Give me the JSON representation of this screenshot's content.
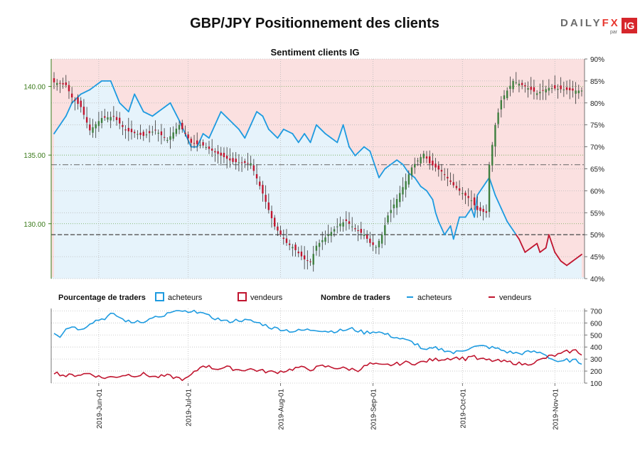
{
  "title": "GBP/JPY Positionnement des clients",
  "logo": {
    "brand_left": "DAILY",
    "brand_right": "FX",
    "by": "par",
    "badge": "IG"
  },
  "chart_data": [
    {
      "type": "candlestick+line",
      "title": "Sentiment clients IG",
      "price_axis": {
        "ticks": [
          "130.00",
          "135.00",
          "140.00"
        ],
        "range": [
          126.0,
          142.0
        ],
        "side": "left"
      },
      "percent_axis": {
        "ticks": [
          "40%",
          "45%",
          "50%",
          "55%",
          "60%",
          "65%",
          "70%",
          "75%",
          "80%",
          "85%",
          "90%"
        ],
        "range": [
          40,
          90
        ],
        "side": "right"
      },
      "reference_lines": {
        "price_dashdot": 134.3,
        "percent_dashed": 50
      },
      "grid": true,
      "price_close_knots": [
        [
          0,
          140.3
        ],
        [
          4,
          140.1
        ],
        [
          6,
          139.2
        ],
        [
          9,
          138.5
        ],
        [
          12,
          136.8
        ],
        [
          16,
          137.7
        ],
        [
          20,
          137.8
        ],
        [
          24,
          136.8
        ],
        [
          30,
          136.4
        ],
        [
          34,
          136.8
        ],
        [
          38,
          136.1
        ],
        [
          42,
          137.2
        ],
        [
          46,
          135.9
        ],
        [
          50,
          135.7
        ],
        [
          54,
          135.2
        ],
        [
          60,
          134.5
        ],
        [
          66,
          134.4
        ],
        [
          70,
          132.2
        ],
        [
          74,
          129.8
        ],
        [
          78,
          128.6
        ],
        [
          80,
          128.3
        ],
        [
          84,
          127.4
        ],
        [
          86,
          127.2
        ],
        [
          88,
          128.4
        ],
        [
          92,
          129.2
        ],
        [
          96,
          130.0
        ],
        [
          98,
          130.2
        ],
        [
          101,
          129.6
        ],
        [
          104,
          129.2
        ],
        [
          106,
          128.6
        ],
        [
          108,
          128.3
        ],
        [
          110,
          129.2
        ],
        [
          112,
          130.6
        ],
        [
          115,
          131.8
        ],
        [
          118,
          133.1
        ],
        [
          120,
          134.1
        ],
        [
          124,
          135.1
        ],
        [
          126,
          134.4
        ],
        [
          130,
          133.8
        ],
        [
          134,
          132.8
        ],
        [
          136,
          132.4
        ],
        [
          140,
          131.7
        ],
        [
          142,
          131.0
        ],
        [
          145,
          130.8
        ],
        [
          146,
          134.3
        ],
        [
          148,
          137.2
        ],
        [
          150,
          139.0
        ],
        [
          154,
          140.4
        ],
        [
          158,
          140.0
        ],
        [
          162,
          139.5
        ],
        [
          166,
          139.9
        ],
        [
          170,
          139.8
        ],
        [
          174,
          139.7
        ]
      ],
      "sentiment_long_pct_knots": [
        [
          0,
          73
        ],
        [
          4,
          77
        ],
        [
          6,
          80
        ],
        [
          9,
          82
        ],
        [
          12,
          83
        ],
        [
          16,
          85
        ],
        [
          19,
          85
        ],
        [
          22,
          80
        ],
        [
          25,
          78
        ],
        [
          27,
          82
        ],
        [
          30,
          78
        ],
        [
          33,
          77
        ],
        [
          37,
          79
        ],
        [
          39,
          80
        ],
        [
          42,
          76
        ],
        [
          44,
          73
        ],
        [
          46,
          70
        ],
        [
          48,
          70
        ],
        [
          50,
          73
        ],
        [
          52,
          72
        ],
        [
          54,
          75
        ],
        [
          56,
          78
        ],
        [
          59,
          76
        ],
        [
          62,
          74
        ],
        [
          64,
          72
        ],
        [
          66,
          75
        ],
        [
          68,
          78
        ],
        [
          70,
          77
        ],
        [
          72,
          74
        ],
        [
          75,
          72
        ],
        [
          77,
          74
        ],
        [
          80,
          73
        ],
        [
          82,
          71
        ],
        [
          84,
          73
        ],
        [
          86,
          71
        ],
        [
          88,
          75
        ],
        [
          91,
          73
        ],
        [
          93,
          72
        ],
        [
          95,
          71
        ],
        [
          97,
          75
        ],
        [
          99,
          70
        ],
        [
          101,
          68
        ],
        [
          104,
          70
        ],
        [
          106,
          69
        ],
        [
          107,
          67
        ],
        [
          109,
          63
        ],
        [
          111,
          65
        ],
        [
          113,
          66
        ],
        [
          115,
          67
        ],
        [
          117,
          66
        ],
        [
          119,
          64
        ],
        [
          121,
          63
        ],
        [
          123,
          61
        ],
        [
          125,
          60
        ],
        [
          127,
          58
        ],
        [
          128,
          55
        ],
        [
          129,
          53
        ],
        [
          131,
          50
        ],
        [
          133,
          52
        ],
        [
          134,
          49
        ],
        [
          136,
          54
        ],
        [
          138,
          54
        ],
        [
          140,
          56
        ],
        [
          141,
          54
        ],
        [
          142,
          59
        ],
        [
          144,
          61
        ],
        [
          146,
          63
        ],
        [
          148,
          59
        ],
        [
          150,
          56
        ],
        [
          152,
          53
        ],
        [
          154,
          51
        ],
        [
          156,
          49
        ],
        [
          158,
          46
        ],
        [
          160,
          47
        ],
        [
          162,
          48
        ],
        [
          163,
          46
        ],
        [
          165,
          47
        ],
        [
          166,
          50
        ],
        [
          167,
          48
        ],
        [
          168,
          46
        ],
        [
          170,
          44
        ],
        [
          172,
          43
        ],
        [
          174,
          44
        ],
        [
          176,
          45
        ],
        [
          178,
          46
        ]
      ],
      "x_tick_labels": [
        "2019-Jun-01",
        "2019-Jul-01",
        "2019-Aug-01",
        "2019-Sep-01",
        "2019-Oct-01",
        "2019-Nov-01"
      ],
      "x_tick_index": [
        15,
        45,
        76,
        107,
        137,
        168
      ],
      "n_days": 178,
      "colors": {
        "up_candle": "#3f7f3f",
        "down_candle": "#c0152f",
        "long_line": "#1e9be0",
        "short_line": "#c0152f",
        "long_fill": "#e6f3fb",
        "short_fill": "#fbe0e0",
        "price_axis": "#3a7a1a"
      }
    },
    {
      "type": "line",
      "legend_percentage": {
        "heading": "Pourcentage de traders",
        "buyers": "acheteurs",
        "sellers": "vendeurs"
      },
      "legend_count": {
        "heading": "Nombre de traders",
        "buyers": "acheteurs",
        "sellers": "vendeurs"
      },
      "y_axis": {
        "ticks": [
          "100",
          "200",
          "300",
          "400",
          "500",
          "600",
          "700"
        ],
        "range": [
          100,
          720
        ],
        "side": "right"
      },
      "series": [
        {
          "name": "acheteurs",
          "knots": [
            [
              0,
              520
            ],
            [
              2,
              490
            ],
            [
              4,
              560
            ],
            [
              7,
              570
            ],
            [
              9,
              540
            ],
            [
              12,
              600
            ],
            [
              14,
              620
            ],
            [
              17,
              640
            ],
            [
              19,
              670
            ],
            [
              21,
              660
            ],
            [
              23,
              630
            ],
            [
              26,
              600
            ],
            [
              28,
              620
            ],
            [
              31,
              610
            ],
            [
              33,
              650
            ],
            [
              36,
              640
            ],
            [
              38,
              680
            ],
            [
              41,
              690
            ],
            [
              43,
              700
            ],
            [
              45,
              680
            ],
            [
              47,
              690
            ],
            [
              49,
              700
            ],
            [
              51,
              660
            ],
            [
              54,
              640
            ],
            [
              58,
              610
            ],
            [
              62,
              625
            ],
            [
              66,
              615
            ],
            [
              70,
              590
            ],
            [
              73,
              560
            ],
            [
              76,
              550
            ],
            [
              80,
              530
            ],
            [
              84,
              540
            ],
            [
              88,
              545
            ],
            [
              92,
              530
            ],
            [
              96,
              535
            ],
            [
              100,
              550
            ],
            [
              104,
              520
            ],
            [
              108,
              530
            ],
            [
              112,
              500
            ],
            [
              116,
              470
            ],
            [
              120,
              440
            ],
            [
              122,
              420
            ],
            [
              124,
              370
            ],
            [
              128,
              390
            ],
            [
              132,
              370
            ],
            [
              134,
              350
            ],
            [
              138,
              380
            ],
            [
              140,
              400
            ],
            [
              144,
              405
            ],
            [
              148,
              390
            ],
            [
              152,
              360
            ],
            [
              156,
              345
            ],
            [
              160,
              360
            ],
            [
              164,
              350
            ],
            [
              167,
              300
            ],
            [
              170,
              270
            ],
            [
              172,
              290
            ],
            [
              175,
              285
            ],
            [
              178,
              260
            ]
          ]
        },
        {
          "name": "vendeurs",
          "knots": [
            [
              0,
              190
            ],
            [
              4,
              160
            ],
            [
              8,
              170
            ],
            [
              12,
              180
            ],
            [
              16,
              145
            ],
            [
              20,
              150
            ],
            [
              24,
              170
            ],
            [
              28,
              165
            ],
            [
              30,
              175
            ],
            [
              34,
              150
            ],
            [
              38,
              160
            ],
            [
              42,
              140
            ],
            [
              44,
              130
            ],
            [
              46,
              165
            ],
            [
              50,
              250
            ],
            [
              54,
              220
            ],
            [
              58,
              230
            ],
            [
              62,
              210
            ],
            [
              66,
              215
            ],
            [
              70,
              200
            ],
            [
              74,
              190
            ],
            [
              78,
              205
            ],
            [
              82,
              230
            ],
            [
              86,
              215
            ],
            [
              90,
              240
            ],
            [
              94,
              230
            ],
            [
              98,
              220
            ],
            [
              102,
              210
            ],
            [
              106,
              260
            ],
            [
              110,
              245
            ],
            [
              114,
              255
            ],
            [
              118,
              270
            ],
            [
              122,
              265
            ],
            [
              126,
              290
            ],
            [
              130,
              300
            ],
            [
              134,
              310
            ],
            [
              136,
              310
            ],
            [
              138,
              300
            ],
            [
              140,
              330
            ],
            [
              142,
              300
            ],
            [
              146,
              290
            ],
            [
              150,
              280
            ],
            [
              154,
              270
            ],
            [
              158,
              255
            ],
            [
              162,
              280
            ],
            [
              166,
              320
            ],
            [
              170,
              340
            ],
            [
              172,
              360
            ],
            [
              175,
              370
            ],
            [
              178,
              330
            ]
          ]
        }
      ],
      "colors": {
        "buyers": "#1e9be0",
        "sellers": "#c0152f"
      }
    }
  ]
}
